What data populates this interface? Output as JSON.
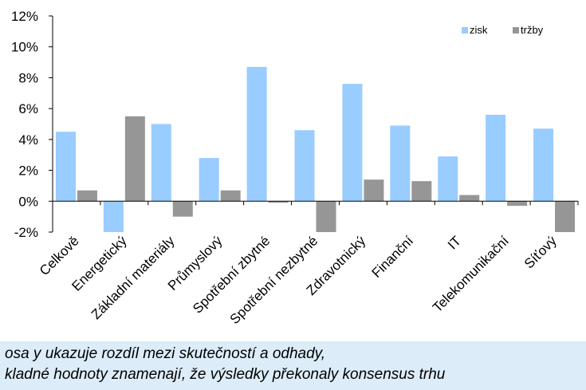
{
  "chart_data": {
    "type": "bar",
    "categories": [
      "Celkově",
      "Energetický",
      "Základní materiály",
      "Průmyslový",
      "Spotřební zbytné",
      "Spotřební nezbytné",
      "Zdravotnický",
      "Finanční",
      "IT",
      "Telekomunikační",
      "Síťový"
    ],
    "series": [
      {
        "name": "zisk",
        "color": "#99ccff",
        "values": [
          4.5,
          -2.0,
          5.0,
          2.8,
          8.7,
          4.6,
          7.6,
          4.9,
          2.9,
          5.6,
          4.7
        ]
      },
      {
        "name": "tržby",
        "color": "#969696",
        "values": [
          0.7,
          5.5,
          -1.0,
          0.7,
          -0.1,
          -2.0,
          1.4,
          1.3,
          0.4,
          -0.3,
          -2.0
        ]
      }
    ],
    "y_ticks": [
      "12%",
      "10%",
      "8%",
      "6%",
      "4%",
      "2%",
      "0%",
      "-2%"
    ],
    "ylim": [
      -2,
      12
    ],
    "y_unit": "%",
    "grid": false,
    "legend_position": "top-right",
    "title": "",
    "xlabel": "",
    "ylabel": ""
  },
  "caption": {
    "line1": "osa y ukazuje rozdíl mezi skutečností a odhady,",
    "line2": "kladné hodnoty znamenají, že výsledky překonaly konsensus trhu"
  }
}
